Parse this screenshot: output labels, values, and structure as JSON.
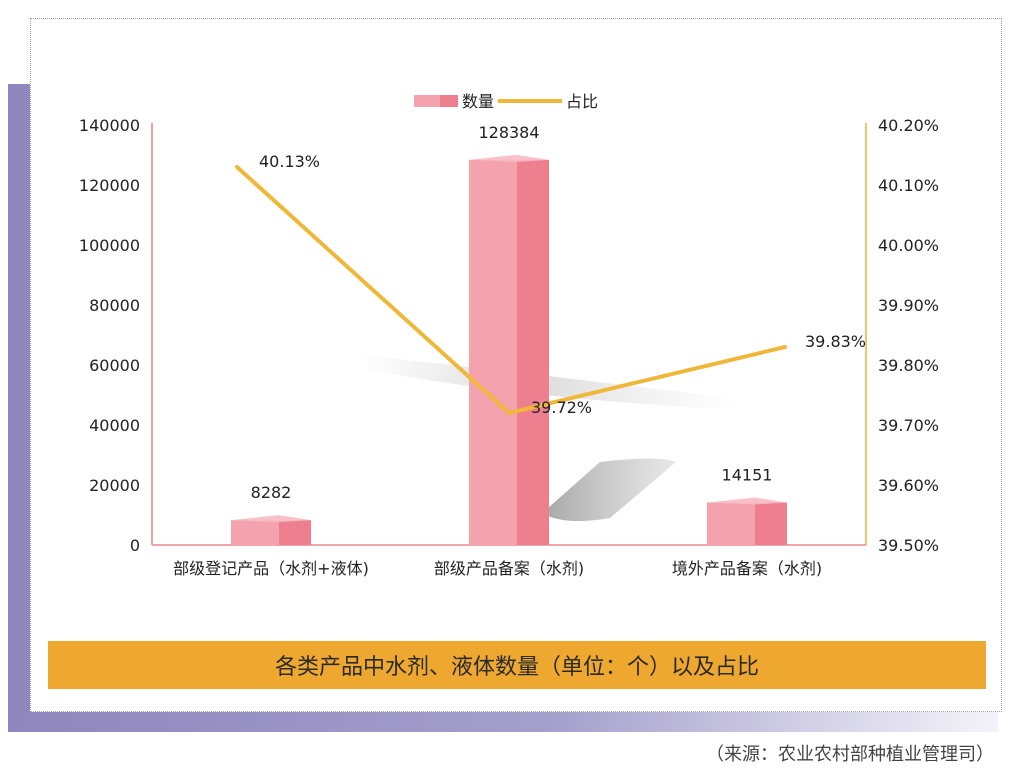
{
  "chart_data": {
    "type": "bar",
    "title": "各类产品中水剂、液体数量（单位：个）以及占比",
    "categories": [
      "部级登记产品（水剂+液体)",
      "部级产品备案（水剂)",
      "境外产品备案（水剂)"
    ],
    "series": [
      {
        "name": "数量",
        "type": "bar",
        "axis": "left",
        "values": [
          8282,
          128384,
          14151
        ],
        "labels": [
          "8282",
          "128384",
          "14151"
        ]
      },
      {
        "name": "占比",
        "type": "line",
        "axis": "right",
        "values": [
          40.13,
          39.72,
          39.83
        ],
        "labels": [
          "40.13%",
          "39.72%",
          "39.83%"
        ]
      }
    ],
    "y_left": {
      "min": 0,
      "max": 140000,
      "ticks": [
        "0",
        "20000",
        "40000",
        "60000",
        "80000",
        "100000",
        "120000",
        "140000"
      ]
    },
    "y_right": {
      "min": 39.5,
      "max": 40.2,
      "ticks": [
        "39.50%",
        "39.60%",
        "39.70%",
        "39.80%",
        "39.90%",
        "40.00%",
        "40.10%",
        "40.20%"
      ]
    },
    "legend_position": "top-center",
    "colors": {
      "bar_front": "#f4a3ae",
      "bar_side": "#ee7f8e",
      "bar_top": "#f7bac3",
      "line": "#f0b83a",
      "left_axis": "#e8868f",
      "right_axis": "#f0c865"
    }
  },
  "caption": "各类产品中水剂、液体数量（单位：个）以及占比",
  "source": "（来源：农业农村部种植业管理司）",
  "colors": {
    "caption_bg": "#eea830",
    "frame_band": "#8f86bd"
  }
}
